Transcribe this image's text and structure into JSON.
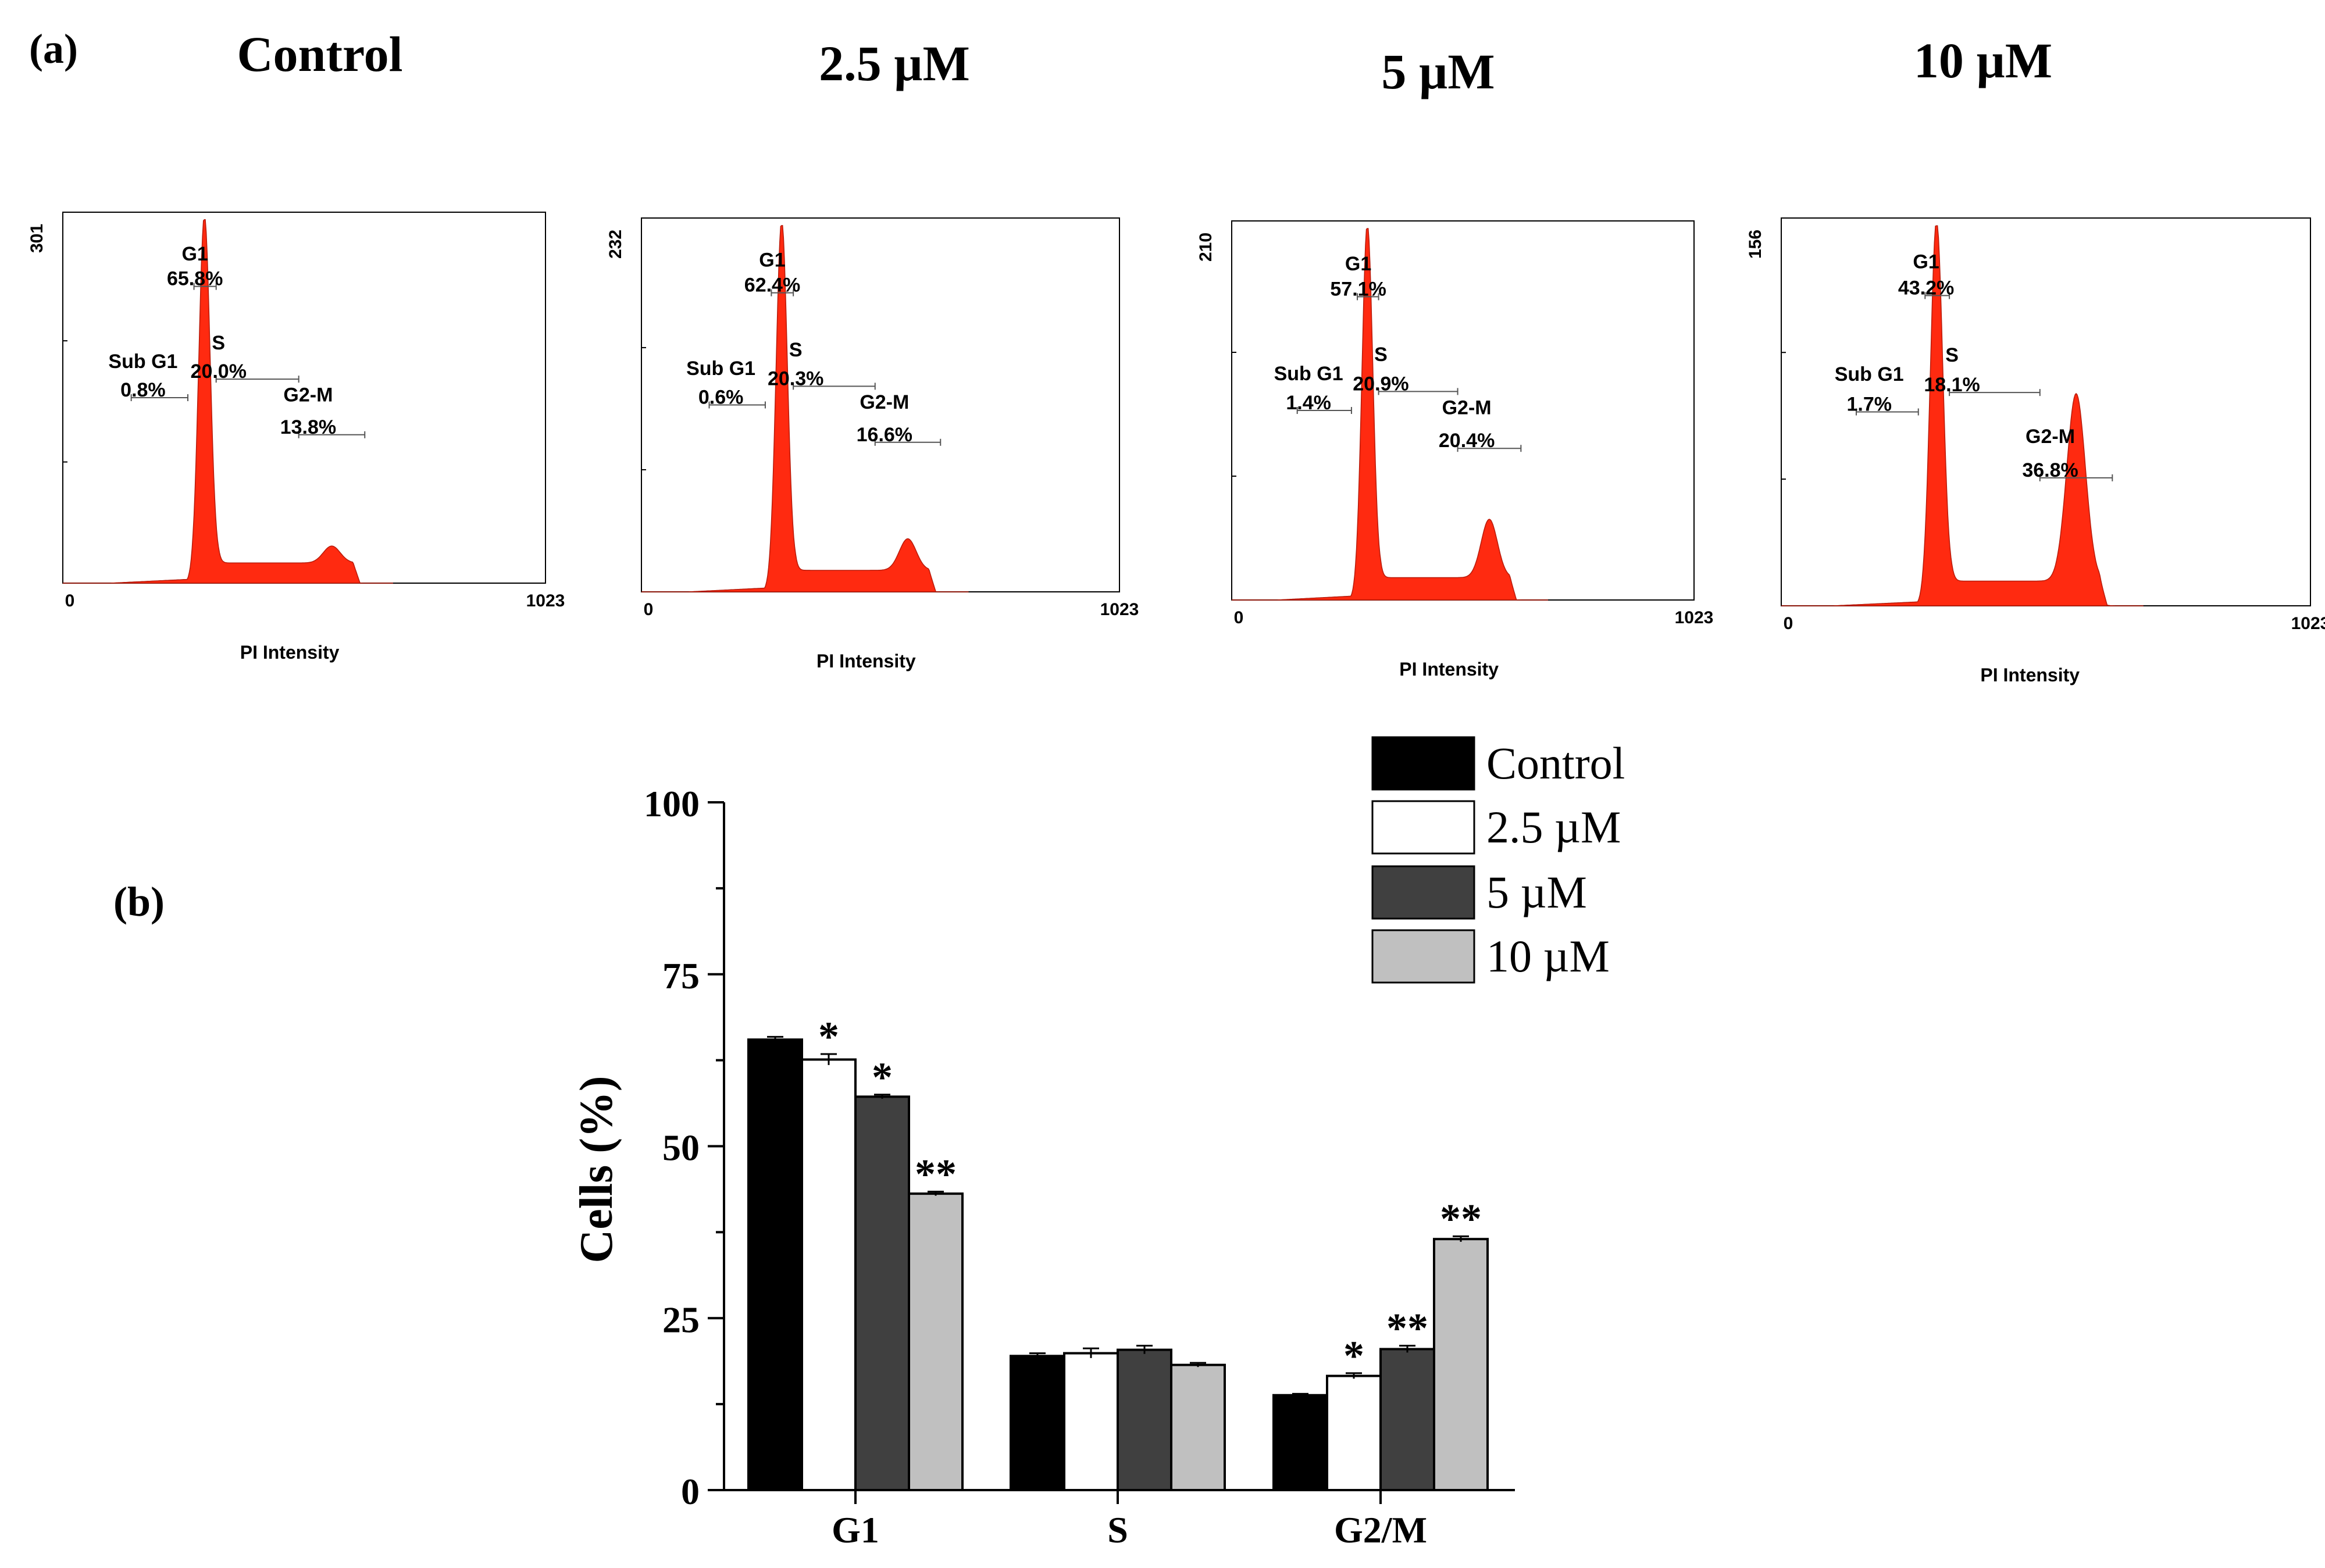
{
  "figure": {
    "panel_a_label": "(a)",
    "panel_b_label": "(b)",
    "conditions": [
      "Control",
      "2.5 µM",
      "5 µM",
      "10 µM"
    ]
  },
  "colors": {
    "histogram_fill": "#ff2a10",
    "control": "#000000",
    "c2_5": "#ffffff",
    "c5": "#404040",
    "c10": "#c0c0c0",
    "axis": "#000000",
    "gate": "#555555"
  },
  "chart_data": [
    {
      "type": "histogram",
      "title": "Control",
      "xlabel": "PI Intensity",
      "xlim": [
        0,
        1023
      ],
      "ymax_label": "301",
      "xmin_label": "0",
      "xmax_label": "1023",
      "peak_counts": [
        301,
        14
      ],
      "gates": [
        {
          "name": "Sub G1",
          "value": "0.8%"
        },
        {
          "name": "G1",
          "value": "65.8%"
        },
        {
          "name": "S",
          "value": "20.0%"
        },
        {
          "name": "G2-M",
          "value": "13.8%"
        }
      ]
    },
    {
      "type": "histogram",
      "title": "2.5 µM",
      "xlabel": "PI Intensity",
      "xlim": [
        0,
        1023
      ],
      "ymax_label": "232",
      "xmin_label": "0",
      "xmax_label": "1023",
      "peak_counts": [
        232,
        20
      ],
      "gates": [
        {
          "name": "Sub G1",
          "value": "0.6%"
        },
        {
          "name": "G1",
          "value": "62.4%"
        },
        {
          "name": "S",
          "value": "20.3%"
        },
        {
          "name": "G2-M",
          "value": "16.6%"
        }
      ]
    },
    {
      "type": "histogram",
      "title": "5 µM",
      "xlabel": "PI Intensity",
      "xlim": [
        0,
        1023
      ],
      "ymax_label": "210",
      "xmin_label": "0",
      "xmax_label": "1023",
      "peak_counts": [
        210,
        33
      ],
      "gates": [
        {
          "name": "Sub G1",
          "value": "1.4%"
        },
        {
          "name": "G1",
          "value": "57.1%"
        },
        {
          "name": "S",
          "value": "20.9%"
        },
        {
          "name": "G2-M",
          "value": "20.4%"
        }
      ]
    },
    {
      "type": "histogram",
      "title": "10 µM",
      "xlabel": "PI Intensity",
      "xlim": [
        0,
        1023
      ],
      "ymax_label": "156",
      "xmin_label": "0",
      "xmax_label": "1023",
      "peak_counts": [
        156,
        77
      ],
      "gates": [
        {
          "name": "Sub G1",
          "value": "1.7%"
        },
        {
          "name": "G1",
          "value": "43.2%"
        },
        {
          "name": "S",
          "value": "18.1%"
        },
        {
          "name": "G2-M",
          "value": "36.8%"
        }
      ]
    },
    {
      "type": "bar",
      "categories": [
        "G1",
        "S",
        "G2/M"
      ],
      "ylabel": "Cells (%)",
      "xlabel": "",
      "ylim": [
        0,
        100
      ],
      "yticks": [
        0,
        25,
        50,
        75,
        100
      ],
      "legend_position": "top-right",
      "series": [
        {
          "name": "Control",
          "values": [
            65.5,
            19.5,
            13.8
          ],
          "errors": [
            0.4,
            0.4,
            0.2
          ],
          "significance": [
            "",
            "",
            ""
          ]
        },
        {
          "name": "2.5 µM",
          "values": [
            62.6,
            19.9,
            16.6
          ],
          "errors": [
            0.8,
            0.7,
            0.4
          ],
          "significance": [
            "*",
            "",
            "*"
          ]
        },
        {
          "name": "5 µM",
          "values": [
            57.2,
            20.4,
            20.5
          ],
          "errors": [
            0.3,
            0.6,
            0.5
          ],
          "significance": [
            "*",
            "",
            "**"
          ]
        },
        {
          "name": "10 µM",
          "values": [
            43.1,
            18.2,
            36.5
          ],
          "errors": [
            0.3,
            0.3,
            0.4
          ],
          "significance": [
            "**",
            "",
            "**"
          ]
        }
      ]
    }
  ]
}
